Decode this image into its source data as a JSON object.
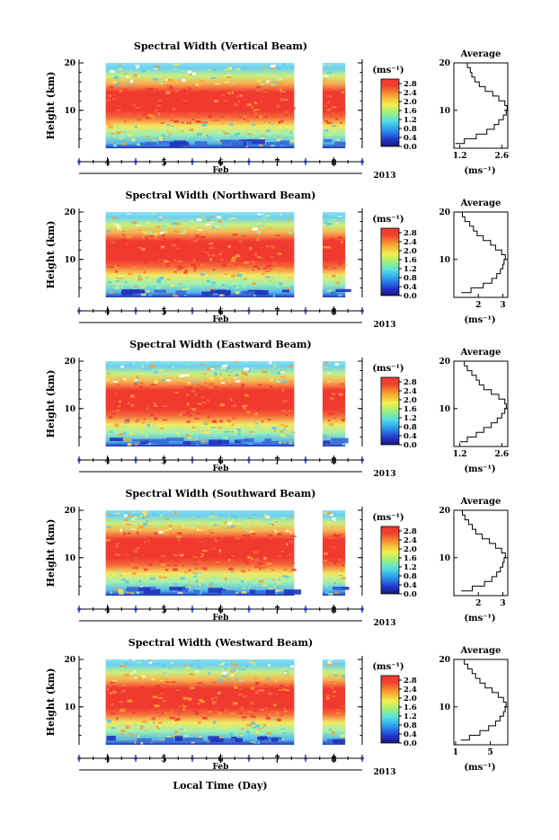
{
  "figure": {
    "xlabel": "Local Time (Day)",
    "month_label": "Feb",
    "year_label": "2013",
    "avg_title": "Average"
  },
  "chart_data": [
    {
      "type": "heatmap",
      "title": "Spectral Width (Vertical Beam)",
      "ylabel": "Height (km)",
      "yticks": [
        "20",
        "10"
      ],
      "xticks": [
        "4",
        "5",
        "6",
        "7",
        "8"
      ],
      "xlim_days": [
        3.5,
        8.5
      ],
      "ylim_km": [
        2,
        20
      ],
      "data_gaps_days": [
        [
          3.5,
          3.97
        ],
        [
          7.3,
          7.8
        ],
        [
          8.2,
          8.5
        ]
      ],
      "colorbar": {
        "unit": "(ms⁻¹)",
        "ticks": [
          "2.8",
          "2.4",
          "2.0",
          "1.6",
          "1.2",
          "0.8",
          "0.4",
          "0.0"
        ],
        "range": [
          0.0,
          3.0
        ]
      },
      "average_profile": {
        "xticks": [
          "1.2",
          "2.6"
        ],
        "xlim": [
          1.0,
          2.8
        ],
        "xunit": "(ms⁻¹)",
        "height_km": [
          3,
          4,
          5,
          6,
          7,
          8,
          9,
          10,
          11,
          12,
          13,
          14,
          15,
          16,
          17,
          18,
          19,
          20
        ],
        "width": [
          1.05,
          1.35,
          1.75,
          2.1,
          2.35,
          2.5,
          2.65,
          2.75,
          2.78,
          2.7,
          2.5,
          2.3,
          2.05,
          1.85,
          1.7,
          1.6,
          1.55,
          1.45
        ]
      }
    },
    {
      "type": "heatmap",
      "title": "Spectral Width (Northward Beam)",
      "ylabel": "Height (km)",
      "yticks": [
        "20",
        "10"
      ],
      "xticks": [
        "4",
        "5",
        "6",
        "7",
        "8"
      ],
      "xlim_days": [
        3.5,
        8.5
      ],
      "ylim_km": [
        2,
        20
      ],
      "data_gaps_days": [
        [
          3.5,
          3.97
        ],
        [
          7.3,
          7.8
        ],
        [
          8.2,
          8.5
        ]
      ],
      "colorbar": {
        "unit": "(ms⁻¹)",
        "ticks": [
          "2.8",
          "2.4",
          "2.0",
          "1.6",
          "1.2",
          "0.8",
          "0.4",
          "0.0"
        ],
        "range": [
          0.0,
          3.0
        ]
      },
      "average_profile": {
        "xticks": [
          "2",
          "3"
        ],
        "xlim": [
          1.0,
          3.2
        ],
        "xunit": "(ms⁻¹)",
        "height_km": [
          3,
          4,
          5,
          6,
          7,
          8,
          9,
          10,
          11,
          12,
          13,
          14,
          15,
          16,
          17,
          18,
          19,
          20
        ],
        "width": [
          1.3,
          1.7,
          2.2,
          2.55,
          2.75,
          2.9,
          3.0,
          3.05,
          3.1,
          2.95,
          2.7,
          2.5,
          2.2,
          1.95,
          1.8,
          1.65,
          1.45,
          1.35
        ]
      }
    },
    {
      "type": "heatmap",
      "title": "Spectral Width (Eastward Beam)",
      "ylabel": "Height (km)",
      "yticks": [
        "20",
        "10"
      ],
      "xticks": [
        "4",
        "5",
        "6",
        "7",
        "8"
      ],
      "xlim_days": [
        3.5,
        8.5
      ],
      "ylim_km": [
        2,
        20
      ],
      "data_gaps_days": [
        [
          3.5,
          3.97
        ],
        [
          7.3,
          7.8
        ],
        [
          8.2,
          8.5
        ]
      ],
      "colorbar": {
        "unit": "(ms⁻¹)",
        "ticks": [
          "2.8",
          "2.4",
          "2.0",
          "1.6",
          "1.2",
          "0.8",
          "0.4",
          "0.0"
        ],
        "range": [
          0.0,
          3.0
        ]
      },
      "average_profile": {
        "xticks": [
          "1.2",
          "2.6"
        ],
        "xlim": [
          1.0,
          2.8
        ],
        "xunit": "(ms⁻¹)",
        "height_km": [
          3,
          4,
          5,
          6,
          7,
          8,
          9,
          10,
          11,
          12,
          13,
          14,
          15,
          16,
          17,
          18,
          19,
          20
        ],
        "width": [
          1.2,
          1.45,
          1.75,
          2.0,
          2.25,
          2.45,
          2.6,
          2.7,
          2.75,
          2.7,
          2.5,
          2.25,
          2.0,
          1.85,
          1.75,
          1.6,
          1.45,
          1.35
        ]
      }
    },
    {
      "type": "heatmap",
      "title": "Spectral Width (Southward Beam)",
      "ylabel": "Height (km)",
      "yticks": [
        "20",
        "10"
      ],
      "xticks": [
        "4",
        "5",
        "6",
        "7",
        "8"
      ],
      "xlim_days": [
        3.5,
        8.5
      ],
      "ylim_km": [
        2,
        20
      ],
      "data_gaps_days": [
        [
          3.5,
          3.97
        ],
        [
          7.3,
          7.8
        ],
        [
          8.2,
          8.5
        ]
      ],
      "colorbar": {
        "unit": "(ms⁻¹)",
        "ticks": [
          "2.8",
          "2.4",
          "2.0",
          "1.6",
          "1.2",
          "0.8",
          "0.4",
          "0.0"
        ],
        "range": [
          0.0,
          3.0
        ]
      },
      "average_profile": {
        "xticks": [
          "2",
          "3"
        ],
        "xlim": [
          1.0,
          3.2
        ],
        "xunit": "(ms⁻¹)",
        "height_km": [
          3,
          4,
          5,
          6,
          7,
          8,
          9,
          10,
          11,
          12,
          13,
          14,
          15,
          16,
          17,
          18,
          19,
          20
        ],
        "width": [
          1.3,
          1.75,
          2.25,
          2.55,
          2.75,
          2.9,
          3.0,
          3.05,
          3.1,
          2.95,
          2.7,
          2.45,
          2.15,
          1.9,
          1.75,
          1.6,
          1.45,
          1.35
        ]
      }
    },
    {
      "type": "heatmap",
      "title": "Spectral Width (Westward Beam)",
      "ylabel": "Height (km)",
      "yticks": [
        "20",
        "10"
      ],
      "xticks": [
        "4",
        "5",
        "6",
        "7",
        "8"
      ],
      "xlim_days": [
        3.5,
        8.5
      ],
      "ylim_km": [
        2,
        20
      ],
      "data_gaps_days": [
        [
          3.5,
          3.97
        ],
        [
          7.3,
          7.8
        ],
        [
          8.2,
          8.5
        ]
      ],
      "colorbar": {
        "unit": "(ms⁻¹)",
        "ticks": [
          "2.8",
          "2.4",
          "2.0",
          "1.6",
          "1.2",
          "0.8",
          "0.4",
          "0.0"
        ],
        "range": [
          0.0,
          3.0
        ]
      },
      "average_profile": {
        "xticks": [
          "1",
          "5"
        ],
        "xlim": [
          0.8,
          7.0
        ],
        "xunit": "(ms⁻¹)",
        "height_km": [
          3,
          4,
          5,
          6,
          7,
          8,
          9,
          10,
          11,
          12,
          13,
          14,
          15,
          16,
          17,
          18,
          19,
          20
        ],
        "width": [
          1.6,
          2.6,
          3.8,
          4.8,
          5.6,
          6.1,
          6.5,
          6.7,
          6.8,
          6.5,
          5.9,
          5.2,
          4.4,
          3.8,
          3.3,
          2.9,
          2.4,
          2.0
        ]
      }
    }
  ]
}
